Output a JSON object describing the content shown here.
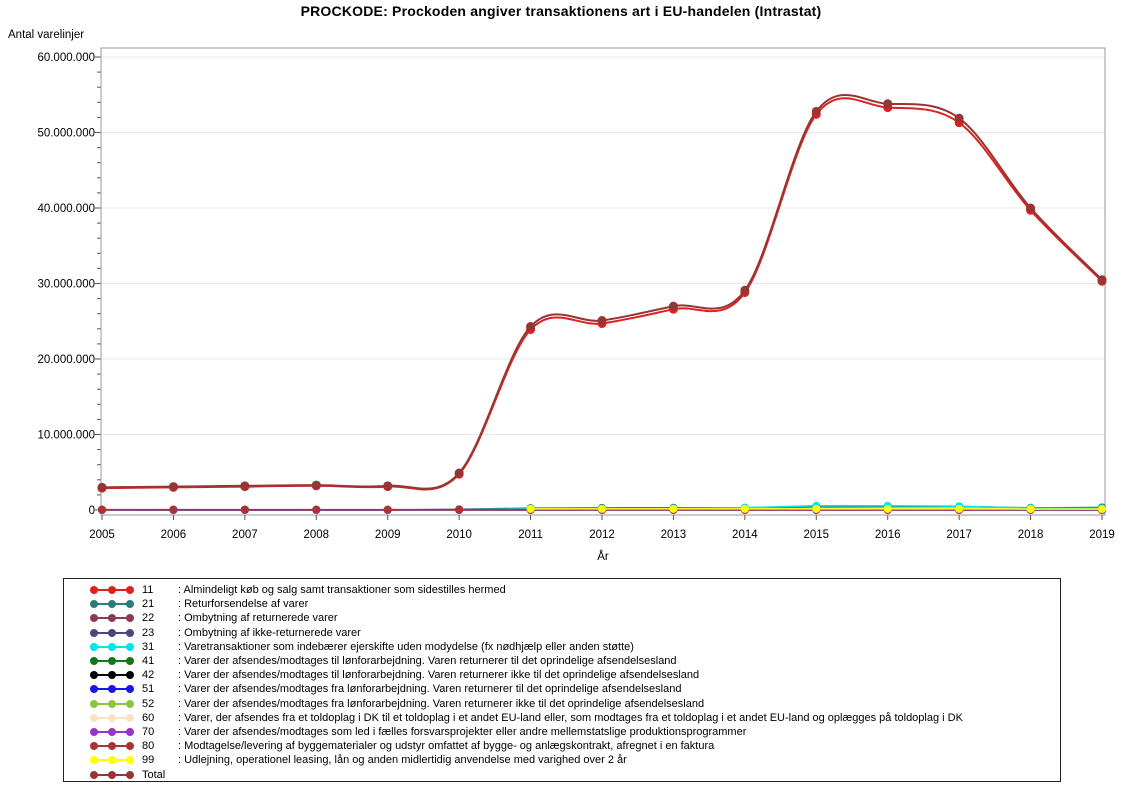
{
  "title": "PROCKODE: Prockoden angiver transaktionens art i EU-handelen (Intrastat)",
  "y_axis": {
    "label": "Antal varelinjer",
    "tick_labels": [
      "0",
      "10.000.000",
      "20.000.000",
      "30.000.000",
      "40.000.000",
      "50.000.000",
      "60.000.000"
    ],
    "tick_values": [
      0,
      10000000,
      20000000,
      30000000,
      40000000,
      50000000,
      60000000
    ],
    "minor_step": 2000000
  },
  "x_axis": {
    "label": "År",
    "ticks": [
      "2005",
      "2006",
      "2007",
      "2008",
      "2009",
      "2010",
      "2011",
      "2012",
      "2013",
      "2014",
      "2015",
      "2016",
      "2017",
      "2018",
      "2019"
    ]
  },
  "chart_data": {
    "type": "line",
    "title": "PROCKODE: Prockoden angiver transaktionens art i EU-handelen (Intrastat)",
    "xlabel": "År",
    "ylabel": "Antal varelinjer",
    "ylim": [
      0,
      60000000
    ],
    "grid": "horizontal",
    "legend_position": "bottom",
    "x": [
      2005,
      2006,
      2007,
      2008,
      2009,
      2010,
      2011,
      2012,
      2013,
      2014,
      2015,
      2016,
      2017,
      2018,
      2019
    ],
    "series": [
      {
        "name": "11",
        "color": "#E02020",
        "big": true,
        "values": [
          2900000,
          3000000,
          3100000,
          3200000,
          3100000,
          4750000,
          23900000,
          24700000,
          26600000,
          28800000,
          52400000,
          53300000,
          51300000,
          39700000,
          30300000
        ]
      },
      {
        "name": "21",
        "color": "#2D7C7C",
        "big": false,
        "values": [
          0,
          0,
          0,
          0,
          0,
          100000,
          250000,
          280000,
          300000,
          300000,
          400000,
          420000,
          450000,
          300000,
          350000
        ]
      },
      {
        "name": "22",
        "color": "#8E3B4C",
        "big": false,
        "values": [
          20000,
          20000,
          20000,
          20000,
          20000,
          20000,
          20000,
          20000,
          20000,
          20000,
          20000,
          20000,
          20000,
          20000,
          20000
        ]
      },
      {
        "name": "23",
        "color": "#4D4677",
        "big": false,
        "values": [
          10000,
          10000,
          10000,
          10000,
          10000,
          10000,
          10000,
          10000,
          10000,
          10000,
          10000,
          10000,
          10000,
          10000,
          10000
        ]
      },
      {
        "name": "31",
        "color": "#00E5EE",
        "big": false,
        "values": [
          0,
          0,
          0,
          0,
          0,
          30000,
          150000,
          150000,
          180000,
          300000,
          550000,
          550000,
          500000,
          250000,
          200000
        ]
      },
      {
        "name": "41",
        "color": "#137813",
        "big": false,
        "values": [
          30000,
          30000,
          30000,
          30000,
          30000,
          30000,
          30000,
          30000,
          30000,
          30000,
          30000,
          30000,
          30000,
          30000,
          30000
        ]
      },
      {
        "name": "42",
        "color": "#000000",
        "big": false,
        "values": [
          5000,
          5000,
          5000,
          5000,
          5000,
          5000,
          5000,
          5000,
          5000,
          5000,
          5000,
          5000,
          5000,
          5000,
          5000
        ]
      },
      {
        "name": "51",
        "color": "#1515EE",
        "big": false,
        "values": [
          40000,
          40000,
          40000,
          40000,
          40000,
          40000,
          40000,
          40000,
          40000,
          40000,
          40000,
          40000,
          40000,
          40000,
          40000
        ]
      },
      {
        "name": "52",
        "color": "#8DC63F",
        "big": false,
        "values": [
          20000,
          20000,
          20000,
          20000,
          20000,
          20000,
          20000,
          20000,
          20000,
          20000,
          20000,
          20000,
          20000,
          20000,
          20000
        ]
      },
      {
        "name": "60",
        "color": "#F7E3C3",
        "big": false,
        "values": [
          10000,
          10000,
          10000,
          10000,
          10000,
          10000,
          10000,
          10000,
          10000,
          10000,
          10000,
          10000,
          10000,
          10000,
          10000
        ]
      },
      {
        "name": "70",
        "color": "#9933CC",
        "big": false,
        "values": [
          2000,
          2000,
          2000,
          2000,
          2000,
          2000,
          2000,
          2000,
          2000,
          2000,
          2000,
          2000,
          2000,
          2000,
          2000
        ]
      },
      {
        "name": "80",
        "color": "#AA3333",
        "big": false,
        "values": [
          50000,
          50000,
          50000,
          50000,
          50000,
          50000,
          50000,
          50000,
          50000,
          50000,
          50000,
          50000,
          50000,
          50000,
          50000
        ]
      },
      {
        "name": "99",
        "color": "#FFFF00",
        "big": false,
        "values": [
          null,
          null,
          null,
          null,
          null,
          null,
          150000,
          150000,
          150000,
          150000,
          150000,
          150000,
          150000,
          120000,
          120000
        ]
      },
      {
        "name": "Total",
        "color": "#963634",
        "big": true,
        "values": [
          3000000,
          3100000,
          3200000,
          3300000,
          3200000,
          4900000,
          24300000,
          25100000,
          27000000,
          29100000,
          52800000,
          53800000,
          51900000,
          40000000,
          30500000
        ]
      }
    ]
  },
  "legend": {
    "items": [
      {
        "code": "11",
        "color": "#E02020",
        "desc": ": Almindeligt køb og salg samt transaktioner som sidestilles hermed"
      },
      {
        "code": "21",
        "color": "#2D7C7C",
        "desc": ": Returforsendelse af varer"
      },
      {
        "code": "22",
        "color": "#8E3B4C",
        "desc": ": Ombytning af returnerede varer"
      },
      {
        "code": "23",
        "color": "#4D4677",
        "desc": ": Ombytning af ikke-returnerede varer"
      },
      {
        "code": "31",
        "color": "#00E5EE",
        "desc": ": Varetransaktioner som indebærer ejerskifte uden modydelse (fx nødhjælp eller anden støtte)"
      },
      {
        "code": "41",
        "color": "#137813",
        "desc": ": Varer der afsendes/modtages til lønforarbejdning. Varen returnerer til det oprindelige afsendelsesland"
      },
      {
        "code": "42",
        "color": "#000000",
        "desc": ": Varer der afsendes/modtages til lønforarbejdning. Varen returnerer ikke til det oprindelige afsendelsesland"
      },
      {
        "code": "51",
        "color": "#1515EE",
        "desc": ": Varer der afsendes/modtages fra lønforarbejdning. Varen returnerer til det oprindelige afsendelsesland"
      },
      {
        "code": "52",
        "color": "#8DC63F",
        "desc": ": Varer der afsendes/modtages fra lønforarbejdning. Varen returnerer ikke til det oprindelige afsendelsesland"
      },
      {
        "code": "60",
        "color": "#F7E3C3",
        "desc": ": Varer, der afsendes fra et toldoplag i DK til et toldoplag i et andet EU-land eller, som modtages fra et toldoplag i et andet EU-land og oplægges på toldoplag i DK"
      },
      {
        "code": "70",
        "color": "#9933CC",
        "desc": ": Varer der afsendes/modtages som led i fælles forsvarsprojekter eller andre mellemstatslige produktionsprogrammer"
      },
      {
        "code": "80",
        "color": "#AA3333",
        "desc": ": Modtagelse/levering af byggematerialer og udstyr omfattet af bygge- og anlægskontrakt, afregnet i en faktura"
      },
      {
        "code": "99",
        "color": "#FFFF00",
        "desc": ": Udlejning, operationel leasing, lån og anden midlertidig anvendelse med varighed over 2 år"
      },
      {
        "code": "Total",
        "color": "#963634",
        "desc": ""
      }
    ]
  }
}
